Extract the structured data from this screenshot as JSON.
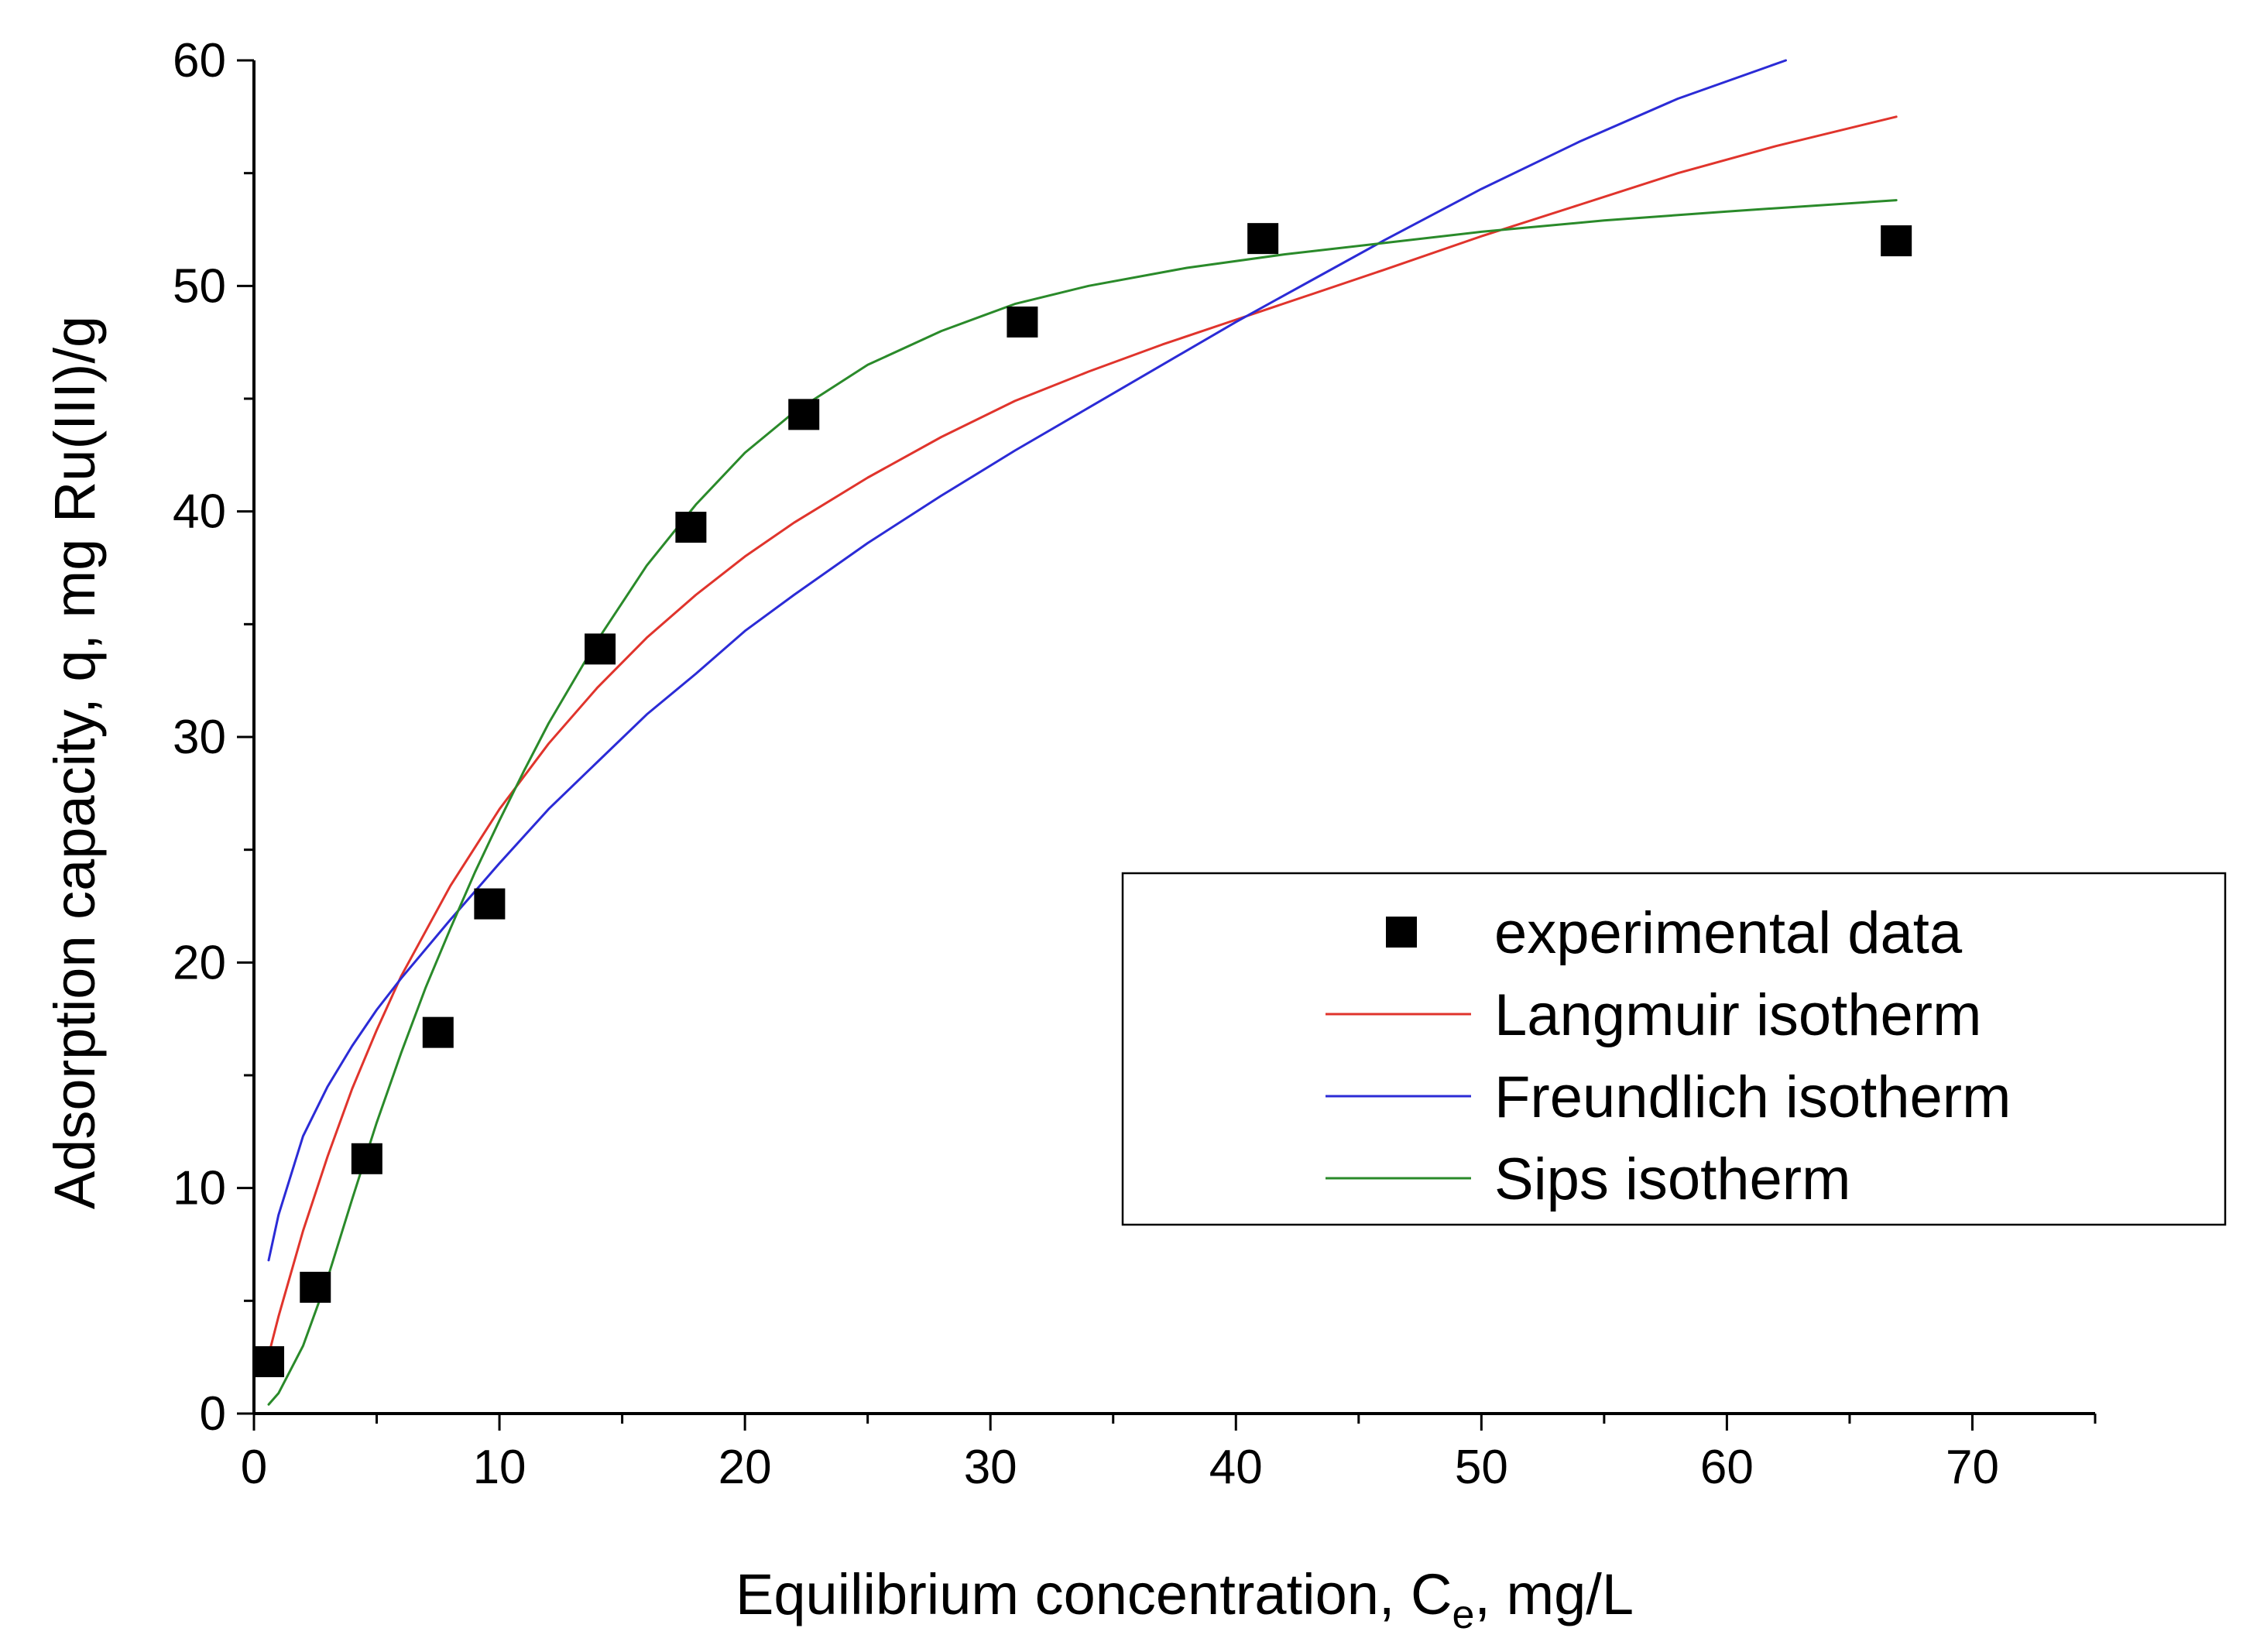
{
  "chart_data": {
    "type": "scatter",
    "xlabel_main": "Equilibrium concentration, C",
    "xlabel_sub": "e",
    "xlabel_tail": ", mg/L",
    "ylabel": "Adsorption capacity, q, mg Ru(III)/g",
    "xlim": [
      0,
      75
    ],
    "ylim": [
      0,
      60
    ],
    "x_ticks": [
      0,
      10,
      20,
      30,
      40,
      50,
      60,
      70
    ],
    "y_ticks": [
      0,
      10,
      20,
      30,
      40,
      50,
      60
    ],
    "grid": false,
    "legend_position": "center-right",
    "series": [
      {
        "name": "experimental data",
        "kind": "markers",
        "color": "#000000",
        "x": [
          0.6,
          2.5,
          4.6,
          7.5,
          9.6,
          14.1,
          17.8,
          22.4,
          31.3,
          41.1,
          66.9
        ],
        "y": [
          2.3,
          5.6,
          11.3,
          16.9,
          22.6,
          33.9,
          39.3,
          44.3,
          48.4,
          52.1,
          52.0
        ]
      },
      {
        "name": "Langmuir isotherm",
        "kind": "line",
        "color": "#e0342c",
        "x": [
          0.6,
          1,
          2,
          3,
          4,
          5,
          6,
          8,
          10,
          12,
          14,
          16,
          18,
          20,
          22,
          25,
          28,
          31,
          34,
          37,
          40,
          43,
          46,
          50,
          54,
          58,
          62,
          66.9
        ],
        "y": [
          2.6,
          4.3,
          8.1,
          11.4,
          14.4,
          17.0,
          19.4,
          23.4,
          26.8,
          29.7,
          32.2,
          34.4,
          36.3,
          38.0,
          39.5,
          41.5,
          43.3,
          44.9,
          46.2,
          47.4,
          48.5,
          49.6,
          50.7,
          52.2,
          53.6,
          55.0,
          56.2,
          57.5
        ]
      },
      {
        "name": "Freundlich isotherm",
        "kind": "line",
        "color": "#2b2bd6",
        "x": [
          0.6,
          1,
          2,
          3,
          4,
          5,
          6,
          8,
          10,
          12,
          14,
          16,
          18,
          20,
          22,
          25,
          28,
          31,
          34,
          37,
          40,
          43,
          46,
          50,
          54,
          58,
          62.4
        ],
        "y": [
          6.8,
          8.8,
          12.3,
          14.5,
          16.3,
          17.9,
          19.3,
          21.9,
          24.4,
          26.8,
          28.9,
          31.0,
          32.8,
          34.7,
          36.3,
          38.6,
          40.7,
          42.7,
          44.6,
          46.5,
          48.4,
          50.2,
          52.0,
          54.3,
          56.4,
          58.3,
          60.0
        ]
      },
      {
        "name": "Sips isotherm",
        "kind": "line",
        "color": "#2a8a2a",
        "x": [
          0.6,
          1,
          2,
          3,
          4,
          5,
          6,
          7,
          8,
          9,
          10,
          11,
          12,
          14,
          16,
          18,
          20,
          22,
          25,
          28,
          31,
          34,
          38,
          42,
          46,
          50,
          55,
          60,
          66.9
        ],
        "y": [
          0.4,
          0.9,
          3.0,
          6.0,
          9.5,
          12.9,
          16.0,
          18.9,
          21.5,
          24.0,
          26.3,
          28.5,
          30.6,
          34.3,
          37.6,
          40.3,
          42.6,
          44.4,
          46.5,
          48.0,
          49.2,
          50.0,
          50.8,
          51.4,
          51.9,
          52.4,
          52.9,
          53.3,
          53.8
        ]
      }
    ]
  }
}
